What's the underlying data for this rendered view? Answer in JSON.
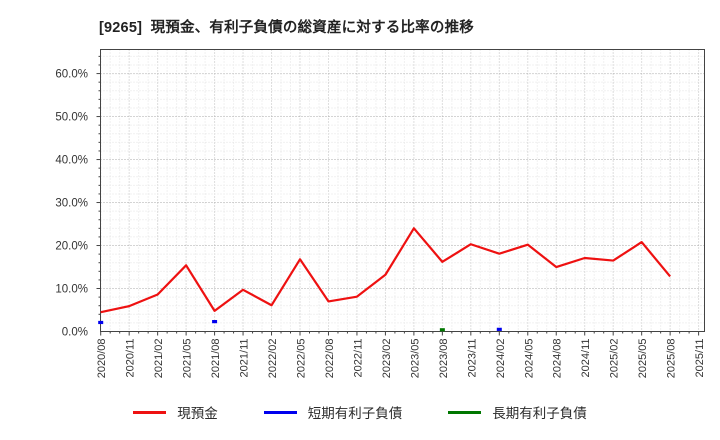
{
  "chart_data": {
    "type": "line",
    "title": "[9265]  現預金、有利子負債の総資産に対する比率の推移",
    "xlabel": "",
    "ylabel": "",
    "ylim": [
      0,
      65.6
    ],
    "grid": "on",
    "legend_position": "bottom",
    "y_ticks": [
      "0.0%",
      "10.0%",
      "20.0%",
      "30.0%",
      "40.0%",
      "50.0%",
      "60.0%"
    ],
    "x_labels": [
      "2020/08",
      "2020/11",
      "2021/02",
      "2021/05",
      "2021/08",
      "2021/11",
      "2022/02",
      "2022/05",
      "2022/08",
      "2022/11",
      "2023/02",
      "2023/05",
      "2023/08",
      "2023/11",
      "2024/02",
      "2024/05",
      "2024/08",
      "2024/11",
      "2025/02",
      "2025/05",
      "2025/08",
      "2025/11"
    ],
    "series": [
      {
        "name": "現預金",
        "key": "cash",
        "color": "#ee1111",
        "values": [
          4.5,
          5.9,
          8.6,
          15.4,
          4.8,
          9.7,
          6.1,
          16.8,
          7.0,
          8.1,
          13.2,
          24.0,
          16.2,
          20.3,
          18.1,
          20.2,
          15.0,
          17.1,
          16.5,
          20.8,
          12.8,
          null
        ]
      },
      {
        "name": "短期有利子負債",
        "key": "short-term-debt",
        "color": "#0000ee",
        "values": [
          2.1,
          null,
          null,
          null,
          2.3,
          null,
          null,
          null,
          null,
          null,
          null,
          null,
          null,
          null,
          0.5,
          null,
          null,
          null,
          null,
          null,
          null,
          null
        ]
      },
      {
        "name": "長期有利子負債",
        "key": "long-term-debt",
        "color": "#007700",
        "values": [
          null,
          null,
          null,
          null,
          null,
          null,
          null,
          null,
          null,
          null,
          null,
          null,
          0.4,
          null,
          null,
          null,
          null,
          null,
          null,
          null,
          null,
          null
        ]
      }
    ]
  }
}
